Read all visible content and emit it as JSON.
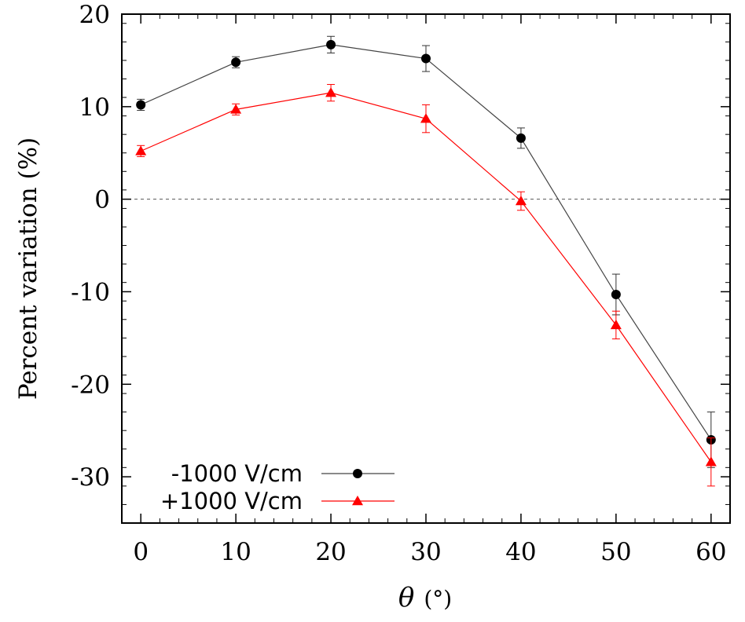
{
  "chart_data": {
    "type": "line",
    "title": "",
    "xlabel_symbol": "θ",
    "xlabel_unit": "(°)",
    "ylabel": "Percent variation (%)",
    "xlim": [
      -2,
      62
    ],
    "ylim": [
      -35,
      20
    ],
    "x_ticks": [
      "0",
      "10",
      "20",
      "30",
      "40",
      "50",
      "60"
    ],
    "y_ticks": [
      "20",
      "10",
      "0",
      "-10",
      "-20",
      "-30"
    ],
    "x_tick_values": [
      0,
      10,
      20,
      30,
      40,
      50,
      60
    ],
    "y_tick_values": [
      20,
      10,
      0,
      -10,
      -20,
      -30
    ],
    "zero_line": true,
    "legend_position": "bottom-left",
    "series": [
      {
        "name": "-1000 V/cm",
        "color": "#000000",
        "line_color": "#444444",
        "marker": "circle",
        "x": [
          0,
          10,
          20,
          30,
          40,
          50,
          60
        ],
        "values": [
          10.2,
          14.8,
          16.7,
          15.2,
          6.6,
          -10.3,
          -26.0
        ],
        "errors": [
          0.6,
          0.6,
          0.9,
          1.4,
          1.1,
          2.2,
          3.0
        ]
      },
      {
        "name": "+1000 V/cm",
        "color": "#ff0000",
        "line_color": "#ff0000",
        "marker": "triangle",
        "x": [
          0,
          10,
          20,
          30,
          40,
          50,
          60
        ],
        "values": [
          5.2,
          9.7,
          11.5,
          8.7,
          -0.2,
          -13.6,
          -28.4
        ],
        "errors": [
          0.6,
          0.6,
          0.9,
          1.5,
          1.0,
          1.5,
          2.6
        ]
      }
    ]
  }
}
